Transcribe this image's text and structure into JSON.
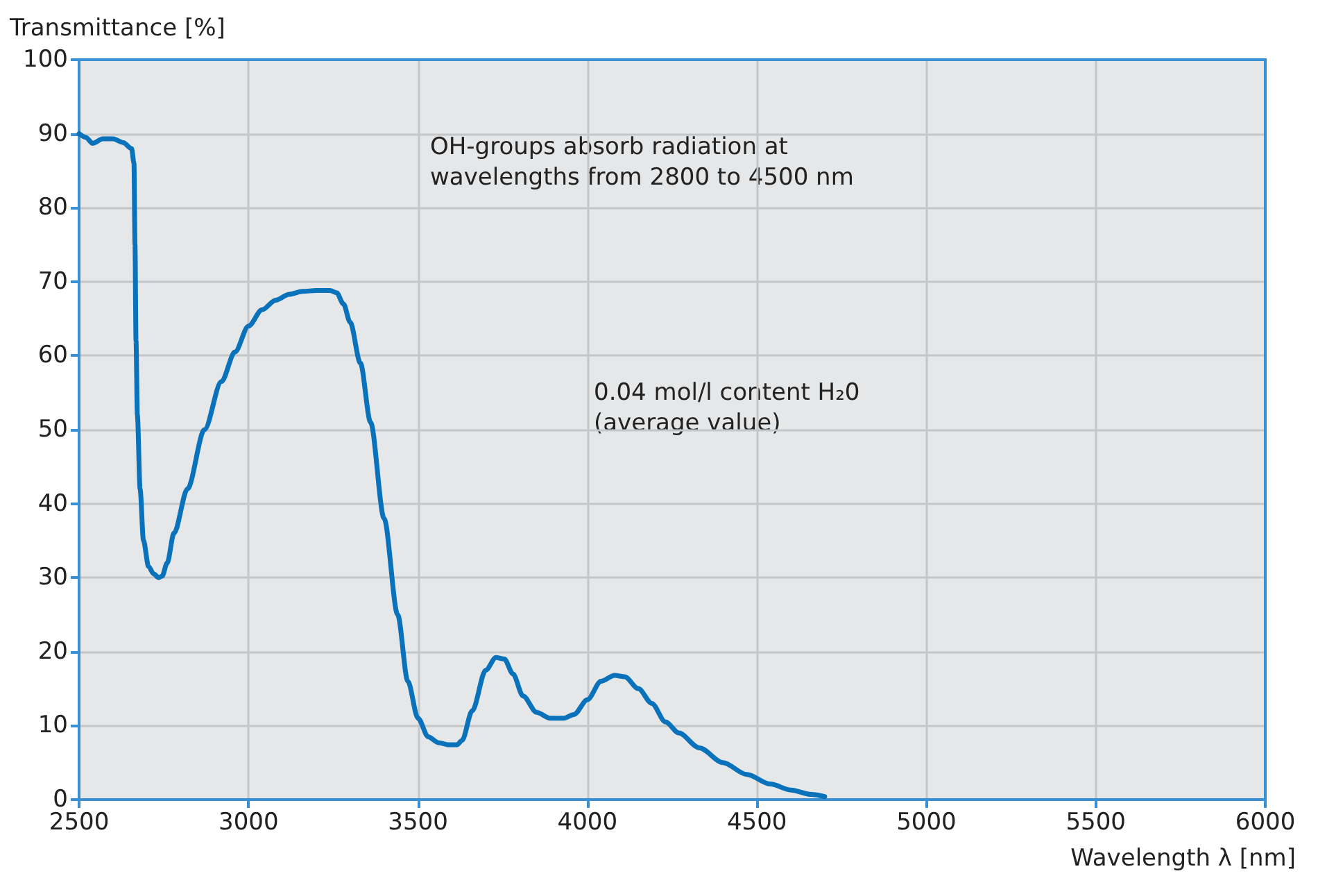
{
  "chart_data": {
    "type": "line",
    "xlabel": "Wavelength λ [nm]",
    "ylabel": "Transmittance [%]",
    "annotations": [
      "OH-groups absorb radiation at\nwavelengths from 2800 to 4500 nm",
      "0.04 mol/l content H₂0\n(average value)"
    ],
    "series": [
      {
        "color": "#0a72ba",
        "x": [
          2500,
          2520,
          2540,
          2570,
          2600,
          2630,
          2655,
          2662,
          2665,
          2668,
          2672,
          2680,
          2690,
          2705,
          2720,
          2735,
          2745,
          2760,
          2780,
          2820,
          2870,
          2920,
          2960,
          3000,
          3040,
          3080,
          3120,
          3160,
          3200,
          3240,
          3260,
          3280,
          3300,
          3330,
          3360,
          3400,
          3440,
          3470,
          3500,
          3530,
          3560,
          3590,
          3615,
          3630,
          3660,
          3700,
          3730,
          3755,
          3780,
          3810,
          3850,
          3890,
          3930,
          3960,
          4000,
          4040,
          4080,
          4110,
          4150,
          4190,
          4230,
          4270,
          4330,
          4400,
          4470,
          4540,
          4600,
          4660,
          4700
        ],
        "values": [
          90,
          89.5,
          88.7,
          89.3,
          89.3,
          88.8,
          88,
          86,
          75,
          62,
          52,
          42,
          35,
          31.5,
          30.5,
          30,
          30.2,
          32,
          36,
          42,
          50,
          56.5,
          60.5,
          64,
          66.2,
          67.5,
          68.3,
          68.7,
          68.8,
          68.8,
          68.5,
          67,
          64.5,
          59,
          51,
          38,
          25,
          16,
          11,
          8.5,
          7.7,
          7.4,
          7.4,
          8,
          12,
          17.5,
          19.2,
          19,
          17,
          14,
          11.8,
          11,
          11,
          11.5,
          13.5,
          16,
          16.8,
          16.6,
          15,
          13,
          10.5,
          9,
          7,
          5,
          3.4,
          2.1,
          1.3,
          0.7,
          0.4
        ]
      }
    ],
    "xlim": [
      2500,
      6000
    ],
    "xticks": [
      2500,
      3000,
      3500,
      4000,
      4500,
      5000,
      5500,
      6000
    ],
    "ylim": [
      0,
      100
    ],
    "yticks": [
      0,
      10,
      20,
      30,
      40,
      50,
      60,
      70,
      80,
      90,
      100
    ],
    "grid": true,
    "marker": "none",
    "line_style": "solid"
  }
}
